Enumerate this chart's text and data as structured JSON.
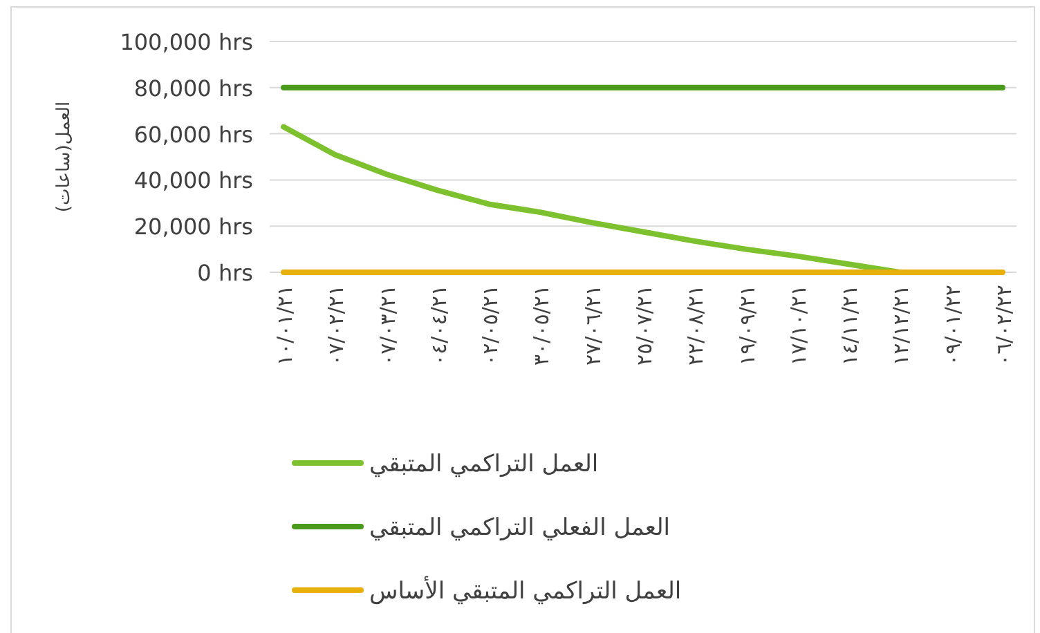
{
  "chart_data": {
    "type": "line",
    "ylabel": "العمل(ساعات)",
    "categories": [
      "١٠/٠١/٢١",
      "٠٧/٠٢/٢١",
      "٠٧/٠٣/٢١",
      "٠٤/٠٤/٢١",
      "٠٢/٠٥/٢١",
      "٣٠/٠٥/٢١",
      "٢٧/٠٦/٢١",
      "٢٥/٠٧/٢١",
      "٢٢/٠٨/٢١",
      "١٩/٠٩/٢١",
      "١٧/١٠/٢١",
      "١٤/١١/٢١",
      "١٢/١٢/٢١",
      "٠٩/٠١/٢٢",
      "٠٦/٠٢/٢٢"
    ],
    "series": [
      {
        "name": "العمل التراكمي المتبقي",
        "color": "#7dc12e",
        "values": [
          63000,
          51000,
          42500,
          35500,
          29500,
          26000,
          21500,
          17500,
          13500,
          10000,
          7000,
          3500,
          0,
          null,
          null
        ]
      },
      {
        "name": "العمل الفعلي التراكمي المتبقي",
        "color": "#4a9b1c",
        "values": [
          80000,
          80000,
          80000,
          80000,
          80000,
          80000,
          80000,
          80000,
          80000,
          80000,
          80000,
          80000,
          80000,
          80000,
          80000
        ]
      },
      {
        "name": "العمل التراكمي المتبقي الأساس",
        "color": "#e8b00c",
        "values": [
          0,
          0,
          0,
          0,
          0,
          0,
          0,
          0,
          0,
          0,
          0,
          0,
          0,
          0,
          0
        ]
      }
    ],
    "ylim": [
      0,
      100000
    ],
    "yticks": [
      {
        "value": 0,
        "label": "0 hrs"
      },
      {
        "value": 20000,
        "label": "20,000 hrs"
      },
      {
        "value": 40000,
        "label": "40,000 hrs"
      },
      {
        "value": 60000,
        "label": "60,000 hrs"
      },
      {
        "value": 80000,
        "label": "80,000 hrs"
      },
      {
        "value": 100000,
        "label": "100,000 hrs"
      }
    ],
    "grid": "y",
    "legend": "bottom",
    "marker": "none",
    "line_style": "solid"
  }
}
